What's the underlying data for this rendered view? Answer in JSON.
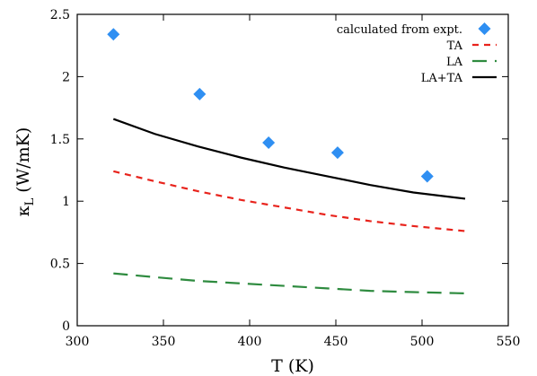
{
  "chart_data": {
    "type": "line",
    "title": "",
    "xlabel": "T (K)",
    "ylabel": {
      "symbol": "κ",
      "subscript": "L",
      "unit": " (W/mK)"
    },
    "xlim": [
      300,
      550
    ],
    "ylim": [
      0,
      2.5
    ],
    "xticks": [
      300,
      350,
      400,
      450,
      500,
      550
    ],
    "yticks": [
      0,
      0.5,
      1,
      1.5,
      2,
      2.5
    ],
    "grid": false,
    "legend_position": "top-right",
    "series": [
      {
        "name": "calculated from expt.",
        "kind": "scatter",
        "marker": "diamond",
        "color": "#2f8ff2",
        "x": [
          321,
          371,
          411,
          451,
          503
        ],
        "y": [
          2.34,
          1.86,
          1.47,
          1.39,
          1.2
        ]
      },
      {
        "name": "TA",
        "kind": "line",
        "dash": "short",
        "color": "#e8231c",
        "x": [
          321,
          345,
          370,
          395,
          420,
          445,
          470,
          495,
          525
        ],
        "y": [
          1.24,
          1.16,
          1.08,
          1.01,
          0.95,
          0.89,
          0.84,
          0.8,
          0.76
        ]
      },
      {
        "name": "LA",
        "kind": "line",
        "dash": "long",
        "color": "#2e8b3f",
        "x": [
          321,
          345,
          370,
          395,
          420,
          445,
          470,
          495,
          525
        ],
        "y": [
          0.42,
          0.39,
          0.36,
          0.34,
          0.32,
          0.3,
          0.28,
          0.27,
          0.26
        ]
      },
      {
        "name": "LA+TA",
        "kind": "line",
        "dash": "solid",
        "color": "#000000",
        "x": [
          321,
          345,
          370,
          395,
          420,
          445,
          470,
          495,
          525
        ],
        "y": [
          1.66,
          1.54,
          1.44,
          1.35,
          1.27,
          1.2,
          1.13,
          1.07,
          1.02
        ]
      }
    ]
  }
}
